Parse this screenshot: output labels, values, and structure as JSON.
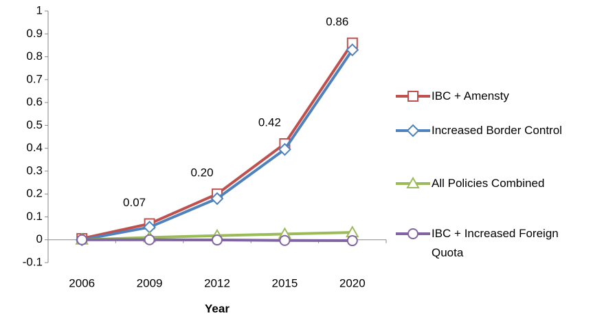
{
  "chart_data": {
    "type": "line",
    "x_label": "Year",
    "categories": [
      "2006",
      "2009",
      "2012",
      "2015",
      "2020"
    ],
    "ylim": [
      -0.1,
      1
    ],
    "yticks": [
      -0.1,
      0,
      0.1,
      0.2,
      0.3,
      0.4,
      0.5,
      0.6,
      0.7,
      0.8,
      0.9,
      1
    ],
    "series": [
      {
        "name": "IBC + Amensty",
        "color": "#c0504d",
        "marker": "square",
        "values": [
          0.005,
          0.07,
          0.2,
          0.42,
          0.86
        ],
        "value_labels": [
          null,
          "0.07",
          "0.20",
          "0.42",
          "0.86"
        ]
      },
      {
        "name": "Increased Border Control",
        "color": "#4f81bd",
        "marker": "diamond",
        "values": [
          0,
          0.055,
          0.18,
          0.395,
          0.83
        ]
      },
      {
        "name": "All Policies Combined",
        "color": "#9bbb59",
        "marker": "triangle",
        "values": [
          0,
          0.01,
          0.018,
          0.025,
          0.032
        ]
      },
      {
        "name": "IBC + Increased Foreign Quota",
        "color": "#8064a2",
        "marker": "circle",
        "values": [
          0,
          0,
          -0.001,
          -0.003,
          -0.004
        ]
      }
    ]
  }
}
